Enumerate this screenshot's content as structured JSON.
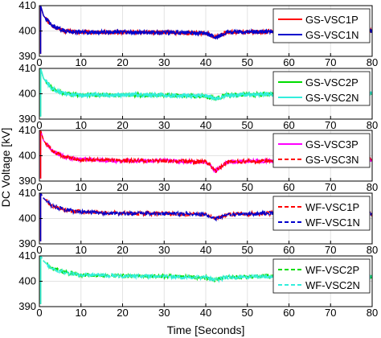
{
  "chart_data": [
    {
      "type": "line",
      "xlim": [
        0,
        80
      ],
      "ylim": [
        390,
        410
      ],
      "x_ticks": [
        0,
        10,
        20,
        30,
        40,
        50,
        60,
        70,
        80
      ],
      "y_ticks": [
        390,
        400,
        410
      ],
      "grid": true,
      "legend_position": "top-right",
      "series": [
        {
          "name": "GS-VSC1P",
          "color": "#ff0000",
          "style": "solid",
          "values": [
            [
              0.3,
              410
            ],
            [
              1,
              406
            ],
            [
              3,
              402
            ],
            [
              6,
              400
            ],
            [
              10,
              399.5
            ],
            [
              20,
              399.5
            ],
            [
              30,
              399.5
            ],
            [
              40,
              399
            ],
            [
              42.5,
              397.5
            ],
            [
              45,
              399.5
            ],
            [
              55,
              399.8
            ],
            [
              65,
              400
            ],
            [
              80,
              400
            ]
          ]
        },
        {
          "name": "GS-VSC1N",
          "color": "#0000cc",
          "style": "solid",
          "values": [
            [
              0.3,
              410
            ],
            [
              1,
              406
            ],
            [
              3,
              402
            ],
            [
              6,
              400
            ],
            [
              10,
              399.5
            ],
            [
              20,
              399.5
            ],
            [
              30,
              399.5
            ],
            [
              40,
              399
            ],
            [
              42.5,
              397.5
            ],
            [
              45,
              399.5
            ],
            [
              55,
              399.8
            ],
            [
              65,
              400
            ],
            [
              80,
              400
            ]
          ]
        }
      ]
    },
    {
      "type": "line",
      "xlim": [
        0,
        80
      ],
      "ylim": [
        390,
        410
      ],
      "x_ticks": [
        0,
        10,
        20,
        30,
        40,
        50,
        60,
        70,
        80
      ],
      "y_ticks": [
        390,
        400,
        410
      ],
      "grid": true,
      "legend_position": "top-right",
      "series": [
        {
          "name": "GS-VSC2P",
          "color": "#00dd00",
          "style": "solid",
          "values": [
            [
              0.3,
              410
            ],
            [
              1,
              406
            ],
            [
              3,
              402
            ],
            [
              6,
              400
            ],
            [
              10,
              399.5
            ],
            [
              20,
              399.5
            ],
            [
              30,
              399.5
            ],
            [
              40,
              399
            ],
            [
              42.5,
              398
            ],
            [
              45,
              399.5
            ],
            [
              55,
              399.8
            ],
            [
              65,
              400
            ],
            [
              80,
              400
            ]
          ]
        },
        {
          "name": "GS-VSC2N",
          "color": "#33eedd",
          "style": "solid",
          "values": [
            [
              0.3,
              410
            ],
            [
              1,
              406
            ],
            [
              3,
              402
            ],
            [
              6,
              400
            ],
            [
              10,
              399.5
            ],
            [
              20,
              399.5
            ],
            [
              30,
              399.5
            ],
            [
              40,
              399
            ],
            [
              42.5,
              398
            ],
            [
              45,
              399.5
            ],
            [
              55,
              399.8
            ],
            [
              65,
              400
            ],
            [
              80,
              400
            ]
          ]
        }
      ]
    },
    {
      "type": "line",
      "xlim": [
        0,
        80
      ],
      "ylim": [
        390,
        410
      ],
      "x_ticks": [
        0,
        10,
        20,
        30,
        40,
        50,
        60,
        70,
        80
      ],
      "y_ticks": [
        390,
        400,
        410
      ],
      "grid": true,
      "legend_position": "top-right",
      "series": [
        {
          "name": "GS-VSC3P",
          "color": "#ff00ff",
          "style": "solid",
          "values": [
            [
              0.3,
              410
            ],
            [
              1,
              406
            ],
            [
              3,
              402
            ],
            [
              6,
              399.5
            ],
            [
              10,
              398.5
            ],
            [
              20,
              398
            ],
            [
              30,
              398
            ],
            [
              40,
              397.5
            ],
            [
              42.5,
              394
            ],
            [
              45,
              397.5
            ],
            [
              55,
              398
            ],
            [
              65,
              398.2
            ],
            [
              80,
              398.5
            ]
          ]
        },
        {
          "name": "GS-VSC3N",
          "color": "#ff0000",
          "style": "dashed",
          "values": [
            [
              0.3,
              410
            ],
            [
              1,
              406
            ],
            [
              3,
              402
            ],
            [
              6,
              399.5
            ],
            [
              10,
              398.5
            ],
            [
              20,
              398
            ],
            [
              30,
              398
            ],
            [
              40,
              397.5
            ],
            [
              42.5,
              394
            ],
            [
              45,
              397.5
            ],
            [
              55,
              398
            ],
            [
              65,
              398.2
            ],
            [
              80,
              398.5
            ]
          ]
        }
      ]
    },
    {
      "type": "line",
      "xlim": [
        0,
        80
      ],
      "ylim": [
        390,
        410
      ],
      "x_ticks": [
        0,
        10,
        20,
        30,
        40,
        50,
        60,
        70,
        80
      ],
      "y_ticks": [
        390,
        400,
        410
      ],
      "grid": true,
      "legend_position": "top-right",
      "series": [
        {
          "name": "WF-VSC1P",
          "color": "#ff0000",
          "style": "dashed",
          "values": [
            [
              0.3,
              410
            ],
            [
              1,
              408
            ],
            [
              3,
              405
            ],
            [
              6,
              403.5
            ],
            [
              10,
              402.5
            ],
            [
              20,
              402
            ],
            [
              30,
              402
            ],
            [
              40,
              401.5
            ],
            [
              42.5,
              400
            ],
            [
              45,
              401.5
            ],
            [
              55,
              402
            ],
            [
              65,
              402
            ],
            [
              80,
              402
            ]
          ]
        },
        {
          "name": "WF-VSC1N",
          "color": "#0000cc",
          "style": "dashed",
          "values": [
            [
              0.3,
              410
            ],
            [
              1,
              408
            ],
            [
              3,
              405
            ],
            [
              6,
              403.5
            ],
            [
              10,
              402.5
            ],
            [
              20,
              402
            ],
            [
              30,
              402
            ],
            [
              40,
              401.5
            ],
            [
              42.5,
              400
            ],
            [
              45,
              401.5
            ],
            [
              55,
              402
            ],
            [
              65,
              402
            ],
            [
              80,
              402
            ]
          ]
        }
      ]
    },
    {
      "type": "line",
      "xlim": [
        0,
        80
      ],
      "ylim": [
        390,
        410
      ],
      "x_ticks": [
        0,
        10,
        20,
        30,
        40,
        50,
        60,
        70,
        80
      ],
      "y_ticks": [
        390,
        400,
        410
      ],
      "grid": true,
      "legend_position": "top-right",
      "series": [
        {
          "name": "WF-VSC2P",
          "color": "#00dd00",
          "style": "dashed",
          "values": [
            [
              0.3,
              410
            ],
            [
              1,
              408
            ],
            [
              3,
              405
            ],
            [
              6,
              403.5
            ],
            [
              10,
              402.5
            ],
            [
              20,
              402
            ],
            [
              30,
              402
            ],
            [
              40,
              401.5
            ],
            [
              42.5,
              400.5
            ],
            [
              45,
              401.5
            ],
            [
              55,
              402
            ],
            [
              65,
              402
            ],
            [
              80,
              402
            ]
          ]
        },
        {
          "name": "WF-VSC2N",
          "color": "#33eedd",
          "style": "dashed",
          "values": [
            [
              0.3,
              410
            ],
            [
              1,
              408
            ],
            [
              3,
              405
            ],
            [
              6,
              403.5
            ],
            [
              10,
              402.5
            ],
            [
              20,
              402
            ],
            [
              30,
              402
            ],
            [
              40,
              401.5
            ],
            [
              42.5,
              400.5
            ],
            [
              45,
              401.5
            ],
            [
              55,
              402
            ],
            [
              65,
              402
            ],
            [
              80,
              402
            ]
          ]
        }
      ]
    }
  ],
  "xlabel": "Time [Seconds]",
  "ylabel": "DC Voltage [kV]"
}
